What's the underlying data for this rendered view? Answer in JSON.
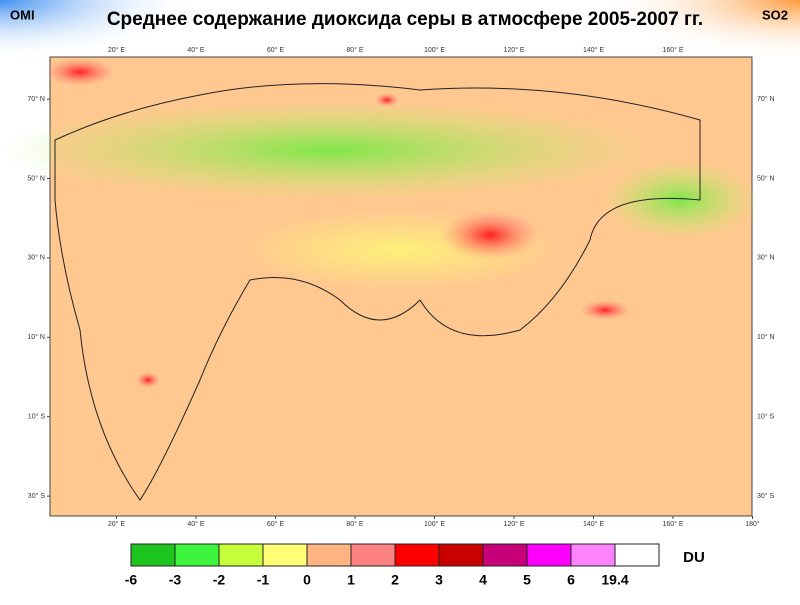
{
  "header": {
    "left_tag": "OMI",
    "title": "Среднее содержание диоксида серы в атмосфере 2005-2007 гг.",
    "right_tag": "SO2"
  },
  "map": {
    "lon_labels": [
      {
        "value": 20,
        "label": "20° E"
      },
      {
        "value": 40,
        "label": "40° E"
      },
      {
        "value": 60,
        "label": "60° E"
      },
      {
        "value": 80,
        "label": "80° E"
      },
      {
        "value": 100,
        "label": "100° E"
      },
      {
        "value": 120,
        "label": "120° E"
      },
      {
        "value": 140,
        "label": "140° E"
      },
      {
        "value": 160,
        "label": "160° E"
      },
      {
        "value": 180,
        "label": "180°"
      }
    ],
    "lat_labels": [
      {
        "value": 70,
        "label": "70° N"
      },
      {
        "value": 50,
        "label": "50° N"
      },
      {
        "value": 30,
        "label": "30° N"
      },
      {
        "value": 10,
        "label": "10° N"
      },
      {
        "value": -10,
        "label": "10° S"
      },
      {
        "value": -30,
        "label": "30° S"
      }
    ]
  },
  "colorbar": {
    "colors": [
      "#1ec41e",
      "#3cf53c",
      "#c8ff3c",
      "#ffff78",
      "#ffb482",
      "#ff8282",
      "#ff0000",
      "#c80000",
      "#c8007a",
      "#ff00ff",
      "#ff82ff",
      "#ffffff"
    ],
    "labels": [
      -6,
      -3,
      -2,
      -1,
      0,
      1,
      2,
      3,
      4,
      5,
      6,
      19.4
    ],
    "unit": "DU"
  }
}
